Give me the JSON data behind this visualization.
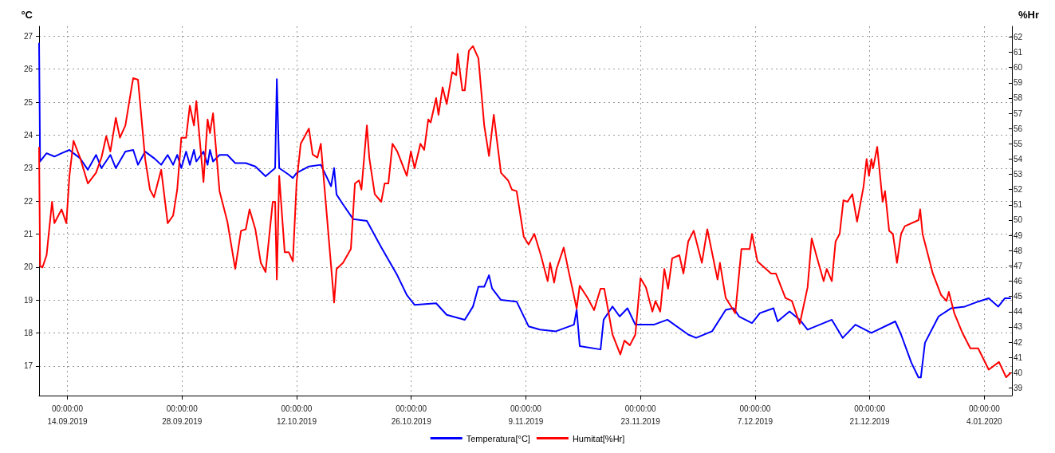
{
  "chart_data": {
    "type": "line",
    "ylabel": "°C",
    "y2label": "%Hr",
    "legend": "bottom",
    "grid": true,
    "marker": "none",
    "line_style": "solid",
    "xlim": [
      "2019-09-10T13:00",
      "2020-01-07T09:00"
    ],
    "xticks": [
      {
        "value": "2019-09-14",
        "label": "00:00:00\n14.09.2019"
      },
      {
        "value": "2019-09-28",
        "label": "00:00:00\n28.09.2019"
      },
      {
        "value": "2019-10-12",
        "label": "00:00:00\n12.10.2019"
      },
      {
        "value": "2019-10-26",
        "label": "00:00:00\n26.10.2019"
      },
      {
        "value": "2019-11-09",
        "label": "00:00:00\n9.11.2019"
      },
      {
        "value": "2019-11-23",
        "label": "00:00:00\n23.11.2019"
      },
      {
        "value": "2019-12-07",
        "label": "00:00:00\n7.12.2019"
      },
      {
        "value": "2019-12-21",
        "label": "00:00:00\n21.12.2019"
      },
      {
        "value": "2020-01-04",
        "label": "00:00:00\n4.01.2020"
      }
    ],
    "ylim": [
      16.1,
      27.3
    ],
    "yticks": [
      17,
      18,
      19,
      20,
      21,
      22,
      23,
      24,
      25,
      26,
      27
    ],
    "y2lim": [
      38.5,
      62.7
    ],
    "y2ticks": [
      39,
      40,
      41,
      42,
      43,
      44,
      45,
      46,
      47,
      48,
      49,
      50,
      51,
      52,
      53,
      54,
      55,
      56,
      57,
      58,
      59,
      60,
      61,
      62
    ],
    "series": [
      {
        "name": "Temperatura[°C]",
        "color": "#0000ff",
        "x": [
          "2019-09-10T13:00",
          "2019-09-10T16:00",
          "2019-09-11T11:00",
          "2019-09-12T10:00",
          "2019-09-13T07:00",
          "2019-09-14T06:00",
          "2019-09-14T18:00",
          "2019-09-15T13:00",
          "2019-09-16T12:00",
          "2019-09-17T12:00",
          "2019-09-18T04:00",
          "2019-09-19T06:00",
          "2019-09-19T22:00",
          "2019-09-21T02:00",
          "2019-09-22T01:00",
          "2019-09-22T15:00",
          "2019-09-23T12:00",
          "2019-09-24T14:00",
          "2019-09-25T11:00",
          "2019-09-26T06:00",
          "2019-09-26T22:00",
          "2019-09-27T10:00",
          "2019-09-27T22:00",
          "2019-09-28T12:00",
          "2019-09-28T23:00",
          "2019-09-29T11:00",
          "2019-09-29T18:00",
          "2019-09-30T15:00",
          "2019-10-01T03:00",
          "2019-10-01T10:00",
          "2019-10-01T19:00",
          "2019-10-02T14:00",
          "2019-10-03T13:00",
          "2019-10-04T12:00",
          "2019-10-05T19:00",
          "2019-10-06T23:00",
          "2019-10-08T05:00",
          "2019-10-09T09:00",
          "2019-10-09T14:00",
          "2019-10-09T21:00",
          "2019-10-11T01:00",
          "2019-10-11T13:00",
          "2019-10-12T00:00",
          "2019-10-13T12:00",
          "2019-10-14T23:00",
          "2019-10-16T05:00",
          "2019-10-16T14:00",
          "2019-10-16T21:00",
          "2019-10-17T16:00",
          "2019-10-18T22:00",
          "2019-10-20T14:00",
          "2019-10-22T08:00",
          "2019-10-24T07:00",
          "2019-10-25T11:00",
          "2019-10-26T10:00",
          "2019-10-29T01:00",
          "2019-10-30T08:00",
          "2019-11-01T13:00",
          "2019-11-02T13:00",
          "2019-11-03T05:00",
          "2019-11-03T22:00",
          "2019-11-04T12:00",
          "2019-11-04T21:00",
          "2019-11-05T23:00",
          "2019-11-07T21:00",
          "2019-11-09T08:00",
          "2019-11-10T17:00",
          "2019-11-12T16:00",
          "2019-11-14T21:00",
          "2019-11-15T05:00",
          "2019-11-15T14:00",
          "2019-11-18T03:00",
          "2019-11-18T12:00",
          "2019-11-19T14:00",
          "2019-11-20T11:00",
          "2019-11-21T10:00",
          "2019-11-22T09:00",
          "2019-11-24T15:00",
          "2019-11-26T07:00",
          "2019-11-28T20:00",
          "2019-11-29T19:00",
          "2019-12-01T18:00",
          "2019-12-03T10:00",
          "2019-12-04T09:00",
          "2019-12-05T01:00",
          "2019-12-06T15:00",
          "2019-12-07T14:00",
          "2019-12-09T06:00",
          "2019-12-09T18:00",
          "2019-12-11T05:00",
          "2019-12-12T11:00",
          "2019-12-13T10:00",
          "2019-12-16T09:00",
          "2019-12-17T17:00",
          "2019-12-19T06:00",
          "2019-12-21T05:00",
          "2019-12-24T03:00",
          "2019-12-24T20:00",
          "2019-12-26T02:00",
          "2019-12-26T23:00",
          "2019-12-27T06:00",
          "2019-12-27T18:00",
          "2019-12-29T10:00",
          "2019-12-30T23:00",
          "2020-01-01T15:00",
          "2020-01-03T06:00",
          "2020-01-04T13:00",
          "2020-01-05T17:00",
          "2020-01-06T12:00",
          "2020-01-07T06:00"
        ],
        "values": [
          26.8,
          23.2,
          23.45,
          23.35,
          23.45,
          23.55,
          23.45,
          23.3,
          22.95,
          23.4,
          23.0,
          23.4,
          23.0,
          23.5,
          23.55,
          23.1,
          23.5,
          23.3,
          23.1,
          23.4,
          23.1,
          23.4,
          23.0,
          23.5,
          23.1,
          23.55,
          23.2,
          23.5,
          23.1,
          23.55,
          23.2,
          23.4,
          23.4,
          23.15,
          23.15,
          23.05,
          22.75,
          23.0,
          25.7,
          23.0,
          22.8,
          22.7,
          22.85,
          23.05,
          23.1,
          22.45,
          23.0,
          22.2,
          21.9,
          21.45,
          21.4,
          20.6,
          19.75,
          19.15,
          18.85,
          18.9,
          18.55,
          18.4,
          18.8,
          19.4,
          19.4,
          19.75,
          19.35,
          19.0,
          18.95,
          18.2,
          18.1,
          18.05,
          18.25,
          18.7,
          17.6,
          17.5,
          18.4,
          18.8,
          18.5,
          18.75,
          18.25,
          18.25,
          18.4,
          17.95,
          17.85,
          18.05,
          18.7,
          18.75,
          18.5,
          18.3,
          18.6,
          18.75,
          18.35,
          18.65,
          18.4,
          18.1,
          18.4,
          17.85,
          18.25,
          18.0,
          18.35,
          17.95,
          17.1,
          16.65,
          16.65,
          17.7,
          18.5,
          18.75,
          18.8,
          18.95,
          19.05,
          18.8,
          19.05,
          19.05
        ]
      },
      {
        "name": "Humitat[%Hr]",
        "color": "#ff0000",
        "axis": "y2",
        "x": [
          "2019-09-10T13:00",
          "2019-09-10T16:00",
          "2019-09-10T23:00",
          "2019-09-11T11:00",
          "2019-09-12T03:00",
          "2019-09-12T10:00",
          "2019-09-13T07:00",
          "2019-09-13T21:00",
          "2019-09-14T06:00",
          "2019-09-14T18:00",
          "2019-09-15T13:00",
          "2019-09-16T12:00",
          "2019-09-17T12:00",
          "2019-09-18T04:00",
          "2019-09-18T18:00",
          "2019-09-19T06:00",
          "2019-09-19T22:00",
          "2019-09-20T10:00",
          "2019-09-21T02:00",
          "2019-09-21T21:00",
          "2019-09-22T01:00",
          "2019-09-22T15:00",
          "2019-09-23T12:00",
          "2019-09-24T02:00",
          "2019-09-24T14:00",
          "2019-09-25T11:00",
          "2019-09-26T06:00",
          "2019-09-26T22:00",
          "2019-09-27T10:00",
          "2019-09-27T22:00",
          "2019-09-28T12:00",
          "2019-09-28T23:00",
          "2019-09-29T11:00",
          "2019-09-29T18:00",
          "2019-09-30T15:00",
          "2019-10-01T03:00",
          "2019-10-01T10:00",
          "2019-10-01T19:00",
          "2019-10-02T14:00",
          "2019-10-03T13:00",
          "2019-10-04T12:00",
          "2019-10-05T05:00",
          "2019-10-05T19:00",
          "2019-10-06T06:00",
          "2019-10-06T23:00",
          "2019-10-07T15:00",
          "2019-10-08T05:00",
          "2019-10-09T02:00",
          "2019-10-09T09:00",
          "2019-10-09T14:00",
          "2019-10-09T21:00",
          "2019-10-10T13:00",
          "2019-10-11T01:00",
          "2019-10-11T13:00",
          "2019-10-12T00:00",
          "2019-10-12T12:00",
          "2019-10-13T12:00",
          "2019-10-13T23:00",
          "2019-10-14T13:00",
          "2019-10-14T23:00",
          "2019-10-16T05:00",
          "2019-10-16T14:00",
          "2019-10-16T21:00",
          "2019-10-17T16:00",
          "2019-10-18T15:00",
          "2019-10-19T03:00",
          "2019-10-19T15:00",
          "2019-10-19T22:00",
          "2019-10-20T14:00",
          "2019-10-20T21:00",
          "2019-10-21T13:00",
          "2019-10-22T08:00",
          "2019-10-22T18:00",
          "2019-10-23T05:00",
          "2019-10-23T17:00",
          "2019-10-24T07:00",
          "2019-10-25T04:00",
          "2019-10-25T11:00",
          "2019-10-25T23:00",
          "2019-10-26T10:00",
          "2019-10-27T03:00",
          "2019-10-27T14:00",
          "2019-10-28T02:00",
          "2019-10-28T09:00",
          "2019-10-29T01:00",
          "2019-10-29T08:00",
          "2019-10-29T20:00",
          "2019-10-30T08:00",
          "2019-10-31T00:00",
          "2019-10-31T12:00",
          "2019-10-31T16:00",
          "2019-11-01T06:00",
          "2019-11-01T13:00",
          "2019-11-02T01:00",
          "2019-11-02T13:00",
          "2019-11-03T05:00",
          "2019-11-03T22:00",
          "2019-11-04T12:00",
          "2019-11-05T02:00",
          "2019-11-05T23:00",
          "2019-11-06T20:00",
          "2019-11-07T07:00",
          "2019-11-07T21:00",
          "2019-11-08T18:00",
          "2019-11-09T08:00",
          "2019-11-10T01:00",
          "2019-11-10T20:00",
          "2019-11-11T16:00",
          "2019-11-11T23:00",
          "2019-11-12T11:00",
          "2019-11-12T18:00",
          "2019-11-13T15:00",
          "2019-11-14T05:00",
          "2019-11-15T05:00",
          "2019-11-15T14:00",
          "2019-11-16T13:00",
          "2019-11-17T08:00",
          "2019-11-18T03:00",
          "2019-11-18T14:00",
          "2019-11-19T14:00",
          "2019-11-20T13:00",
          "2019-11-21T01:00",
          "2019-11-21T17:00",
          "2019-11-22T09:00",
          "2019-11-23T00:00",
          "2019-11-23T16:00",
          "2019-11-24T11:00",
          "2019-11-24T20:00",
          "2019-11-25T10:00",
          "2019-11-25T22:00",
          "2019-11-26T09:00",
          "2019-11-26T21:00",
          "2019-11-27T18:00",
          "2019-11-28T06:00",
          "2019-11-28T20:00",
          "2019-11-29T12:00",
          "2019-11-30T12:00",
          "2019-12-01T04:00",
          "2019-12-02T10:00",
          "2019-12-02T17:00",
          "2019-12-03T10:00",
          "2019-12-04T14:00",
          "2019-12-05T08:00",
          "2019-12-06T08:00",
          "2019-12-06T15:00",
          "2019-12-07T07:00",
          "2019-12-08T23:00",
          "2019-12-09T13:00",
          "2019-12-10T17:00",
          "2019-12-11T12:00",
          "2019-12-12T11:00",
          "2019-12-13T10:00",
          "2019-12-13T22:00",
          "2019-12-14T14:00",
          "2019-12-15T09:00",
          "2019-12-15T18:00",
          "2019-12-16T09:00",
          "2019-12-16T20:00",
          "2019-12-17T08:00",
          "2019-12-17T19:00",
          "2019-12-18T07:00",
          "2019-12-18T21:00",
          "2019-12-19T11:00",
          "2019-12-20T06:00",
          "2019-12-20T15:00",
          "2019-12-20T22:00",
          "2019-12-21T05:00",
          "2019-12-21T10:00",
          "2019-12-21T22:00",
          "2019-12-22T14:00",
          "2019-12-22T21:00",
          "2019-12-23T09:00",
          "2019-12-23T20:00",
          "2019-12-24T08:00",
          "2019-12-24T20:00",
          "2019-12-25T07:00",
          "2019-12-26T23:00",
          "2019-12-27T04:00",
          "2019-12-27T11:00",
          "2019-12-28T17:00",
          "2019-12-29T17:00",
          "2019-12-30T09:00",
          "2019-12-30T16:00",
          "2019-12-31T08:00",
          "2020-01-01T08:00",
          "2020-01-02T07:00",
          "2020-01-03T06:00",
          "2020-01-04T13:00",
          "2020-01-05T19:00",
          "2020-01-06T16:00",
          "2020-01-07T06:00"
        ],
        "values": [
          54.8,
          47.0,
          46.9,
          47.7,
          51.2,
          49.8,
          50.7,
          49.8,
          52.9,
          55.2,
          54.1,
          52.4,
          53.1,
          54.1,
          55.5,
          54.5,
          56.7,
          55.4,
          56.2,
          58.8,
          59.3,
          59.2,
          54.0,
          52.0,
          51.5,
          53.3,
          49.8,
          50.3,
          52.0,
          55.4,
          55.4,
          57.5,
          56.2,
          57.8,
          52.5,
          56.6,
          55.7,
          57.0,
          51.9,
          49.9,
          46.8,
          49.3,
          49.4,
          50.7,
          49.4,
          47.2,
          46.6,
          51.2,
          51.2,
          46.1,
          52.9,
          47.9,
          47.9,
          47.3,
          52.5,
          55.0,
          56.0,
          54.3,
          54.1,
          55.0,
          47.0,
          44.6,
          46.8,
          47.2,
          48.1,
          52.4,
          52.6,
          52.0,
          56.2,
          54.1,
          51.7,
          51.2,
          52.4,
          52.4,
          55.0,
          54.5,
          53.3,
          52.9,
          54.5,
          53.4,
          55.0,
          54.6,
          56.6,
          56.4,
          58.0,
          56.9,
          58.7,
          57.6,
          59.7,
          59.5,
          60.9,
          58.5,
          58.5,
          61.1,
          61.4,
          60.6,
          56.2,
          54.2,
          56.9,
          53.1,
          52.6,
          52.0,
          51.9,
          48.9,
          48.4,
          49.1,
          47.7,
          46.0,
          47.2,
          45.9,
          46.8,
          48.2,
          46.7,
          44.2,
          45.7,
          44.9,
          44.1,
          45.5,
          45.5,
          42.5,
          41.2,
          42.1,
          41.8,
          42.5,
          46.2,
          45.6,
          44.0,
          44.7,
          44.0,
          46.8,
          45.5,
          47.5,
          47.7,
          46.5,
          48.6,
          49.3,
          47.2,
          49.4,
          46.1,
          47.2,
          44.9,
          43.9,
          48.1,
          48.1,
          49.1,
          47.3,
          46.5,
          46.5,
          44.9,
          44.7,
          43.2,
          45.6,
          48.8,
          47.5,
          46.0,
          46.8,
          46.0,
          48.6,
          49.1,
          51.3,
          51.2,
          51.7,
          49.9,
          52.2,
          54.0,
          52.9,
          54.0,
          53.4,
          54.8,
          51.2,
          51.9,
          49.3,
          49.1,
          47.2,
          49.1,
          49.6,
          50.0,
          50.7,
          49.1,
          46.5,
          45.1,
          44.7,
          45.3,
          43.9,
          42.6,
          41.6,
          41.6,
          40.2,
          40.7,
          39.7,
          40.0
        ]
      }
    ]
  }
}
